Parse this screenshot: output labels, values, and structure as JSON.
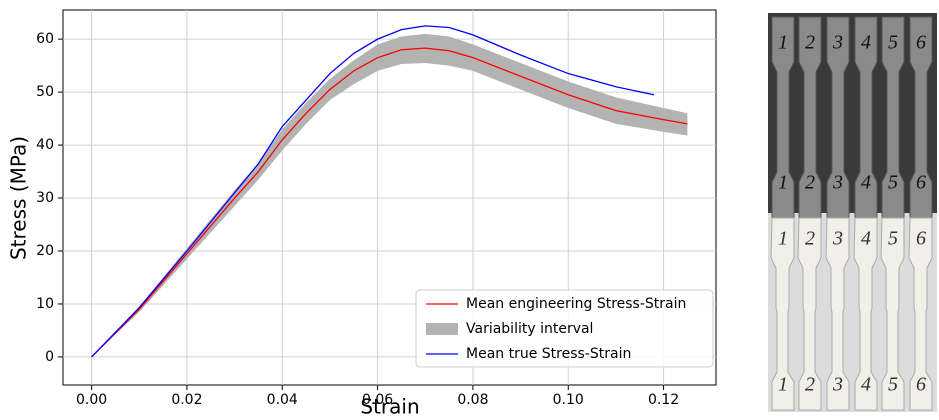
{
  "chart_data": {
    "type": "line",
    "x_label": "Strain",
    "y_label": "Stress (MPa)",
    "xlim": [
      -0.006,
      0.131
    ],
    "ylim": [
      -5.3,
      65.5
    ],
    "xticks": [
      {
        "value": 0,
        "label": "0.00"
      },
      {
        "value": 0.02,
        "label": "0.02"
      },
      {
        "value": 0.04,
        "label": "0.04"
      },
      {
        "value": 0.06,
        "label": "0.06"
      },
      {
        "value": 0.08,
        "label": "0.08"
      },
      {
        "value": 0.1,
        "label": "0.10"
      },
      {
        "value": 0.12,
        "label": "0.12"
      }
    ],
    "yticks": [
      0,
      10,
      20,
      30,
      40,
      50,
      60
    ],
    "grid": true,
    "legend": "lower right",
    "series": [
      {
        "name": "Mean engineering Stress-Strain",
        "color": "#ff0000",
        "x": [
          0,
          0.01,
          0.02,
          0.03,
          0.035,
          0.04,
          0.045,
          0.05,
          0.055,
          0.06,
          0.065,
          0.07,
          0.075,
          0.08,
          0.09,
          0.1,
          0.11,
          0.12,
          0.125
        ],
        "values": [
          0,
          9,
          19.5,
          30,
          35,
          41,
          46,
          50.5,
          54,
          56.5,
          58,
          58.3,
          57.8,
          56.5,
          53,
          49.5,
          46.5,
          44.8,
          44
        ]
      },
      {
        "name": "Variability interval",
        "color": "#b3b3b3",
        "x": [
          0,
          0.01,
          0.02,
          0.03,
          0.035,
          0.04,
          0.045,
          0.05,
          0.055,
          0.06,
          0.065,
          0.07,
          0.075,
          0.08,
          0.09,
          0.1,
          0.11,
          0.12,
          0.125
        ],
        "upper": [
          0,
          9.5,
          20.5,
          31.5,
          36.5,
          43,
          48,
          52.5,
          56,
          59,
          60.5,
          61,
          60.5,
          59,
          55.5,
          52,
          49,
          47,
          46
        ],
        "lower": [
          0,
          8.5,
          18.5,
          28.5,
          33.5,
          39,
          44,
          48.5,
          51.5,
          54,
          55.3,
          55.5,
          55,
          54,
          50.5,
          47,
          44,
          42.5,
          41.8
        ]
      },
      {
        "name": "Mean true Stress-Strain",
        "color": "#0000ff",
        "x": [
          0,
          0.01,
          0.02,
          0.03,
          0.035,
          0.04,
          0.045,
          0.05,
          0.055,
          0.06,
          0.065,
          0.07,
          0.075,
          0.08,
          0.09,
          0.1,
          0.11,
          0.118
        ],
        "values": [
          0,
          9.3,
          20,
          31,
          36.5,
          43.5,
          48.5,
          53.5,
          57.3,
          60,
          61.8,
          62.5,
          62.2,
          60.8,
          57,
          53.5,
          51,
          49.5
        ]
      }
    ]
  },
  "photo": {
    "label_rows": [
      [
        "1",
        "2",
        "3",
        "4",
        "5",
        "6"
      ],
      [
        "1",
        "2",
        "3",
        "4",
        "5",
        "6"
      ],
      [
        "1",
        "2",
        "3",
        "4",
        "5",
        "6"
      ],
      [
        "1",
        "2",
        "3",
        "4",
        "5",
        "6"
      ]
    ]
  }
}
